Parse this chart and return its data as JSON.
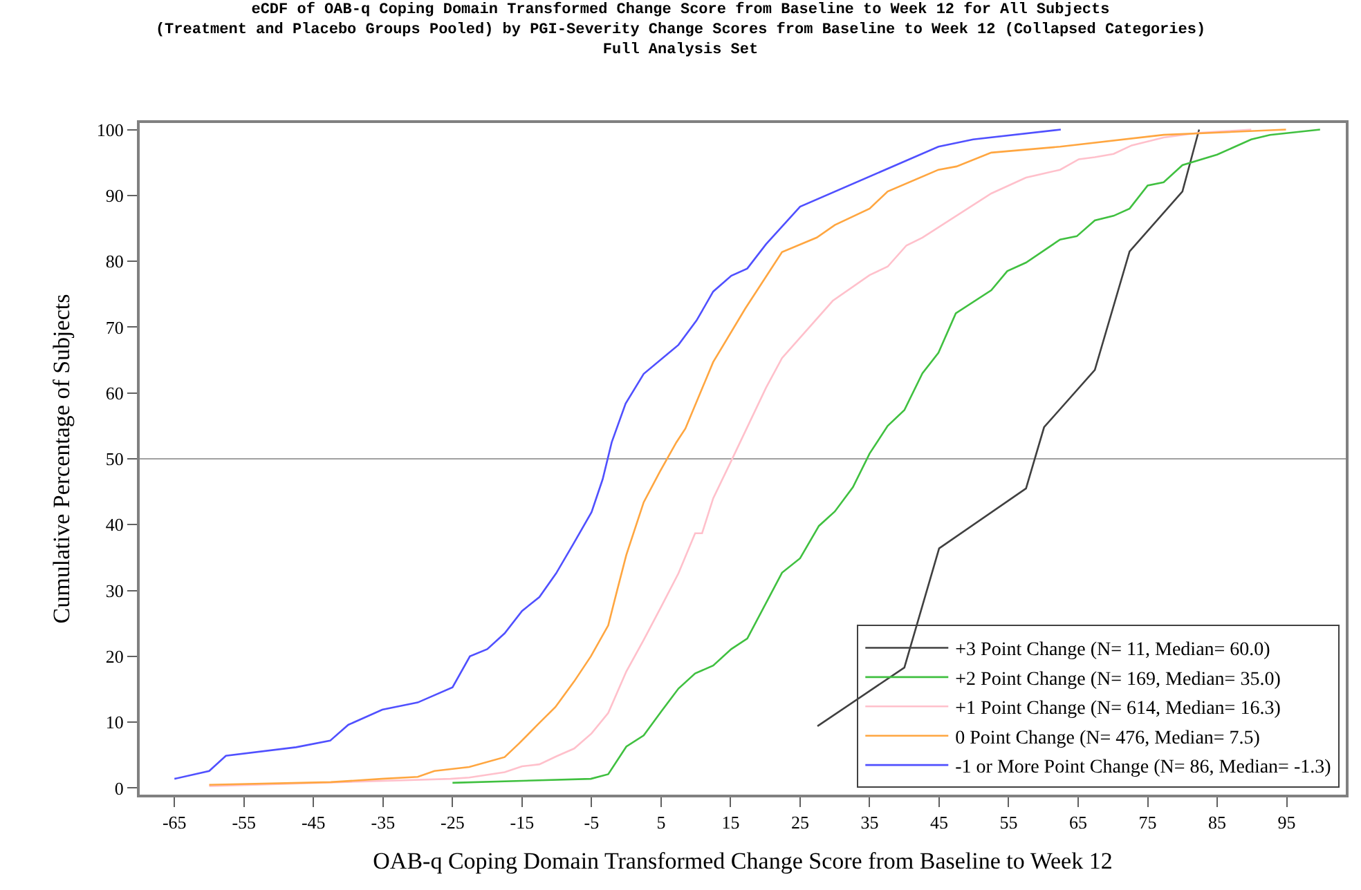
{
  "chart_data": {
    "type": "line",
    "title": "eCDF of OAB-q Coping Domain Transformed Change Score from Baseline to Week 12 for All Subjects\n(Treatment and Placebo Groups Pooled) by PGI-Severity Change Scores from Baseline to Week 12 (Collapsed Categories)\nFull Analysis Set",
    "xlabel": "OAB-q Coping Domain Transformed Change Score from Baseline to Week 12",
    "ylabel": "Cumulative Percentage of Subjects",
    "xlim": [
      -70,
      103.5
    ],
    "ylim": [
      -1,
      101
    ],
    "xticks": [
      -65,
      -55,
      -45,
      -35,
      -25,
      -15,
      -5,
      5,
      15,
      25,
      35,
      45,
      55,
      65,
      75,
      85,
      95
    ],
    "yticks": [
      0,
      10,
      20,
      30,
      40,
      50,
      60,
      70,
      80,
      90,
      100
    ],
    "grid": false,
    "legend": "bottom right",
    "marker": "none",
    "line_style": "solid",
    "ref_lines": [
      {
        "axis": "y",
        "value": 50,
        "label": null,
        "color": "#a0a0a0"
      }
    ],
    "series": [
      {
        "name": "+3 Point Change (N= 11, Median= 60.0)",
        "color": "#404040",
        "x": [
          27.5,
          40.0,
          45.0,
          57.5,
          60.1,
          67.4,
          72.4,
          80.0,
          82.4
        ],
        "values": [
          9.4,
          18.3,
          36.4,
          45.5,
          54.8,
          63.5,
          81.5,
          90.6,
          100
        ]
      },
      {
        "name": "+2 Point Change (N= 169, Median= 35.0)",
        "color": "#40c040",
        "x": [
          -25,
          -5.1,
          -2.6,
          0,
          2.5,
          5.0,
          7.5,
          9.9,
          12.5,
          15.1,
          17.4,
          22.4,
          25.0,
          27.7,
          30.0,
          32.6,
          35.0,
          37.6,
          40.0,
          42.6,
          44.9,
          47.4,
          52.5,
          54.8,
          57.5,
          62.4,
          64.8,
          67.4,
          70.1,
          72.4,
          75.0,
          77.3,
          80.0,
          85.0,
          89.9,
          92.6,
          99.8
        ],
        "values": [
          0.8,
          1.4,
          2.1,
          6.3,
          8.0,
          11.6,
          15.1,
          17.4,
          18.6,
          21.1,
          22.7,
          32.7,
          34.9,
          39.8,
          42.0,
          45.7,
          50.8,
          55.0,
          57.4,
          63.0,
          66.1,
          72.1,
          75.6,
          78.5,
          79.8,
          83.3,
          83.8,
          86.2,
          86.9,
          88.0,
          91.5,
          92.0,
          94.6,
          96.2,
          98.5,
          99.2,
          100
        ]
      },
      {
        "name": "+1 Point Change (N= 614, Median= 16.3)",
        "color": "#ffc0cb",
        "x": [
          -60,
          -25.3,
          -22.6,
          -17.5,
          -15,
          -12.5,
          -10.1,
          -7.5,
          -5.0,
          -2.6,
          0,
          2.5,
          5.0,
          7.5,
          9.9,
          10.9,
          12.5,
          15.1,
          20.1,
          22.4,
          29.7,
          35.0,
          37.6,
          40.3,
          42.6,
          52.5,
          57.5,
          62.4,
          65.1,
          67.4,
          70.1,
          72.7,
          77.3,
          82.3,
          89.9
        ],
        "values": [
          0.3,
          1.4,
          1.6,
          2.4,
          3.3,
          3.6,
          4.8,
          6.0,
          8.3,
          11.4,
          17.7,
          22.5,
          27.5,
          32.6,
          38.7,
          38.7,
          44.0,
          49.7,
          60.8,
          65.3,
          74.0,
          77.9,
          79.2,
          82.4,
          83.6,
          90.3,
          92.7,
          93.9,
          95.5,
          95.8,
          96.3,
          97.6,
          98.8,
          99.5,
          100
        ]
      },
      {
        "name": "0 Point Change (N= 476, Median= 7.5)",
        "color": "#ffa640",
        "x": [
          -60,
          -42.5,
          -35.2,
          -30,
          -27.6,
          -22.6,
          -17.5,
          -15.4,
          -12.7,
          -10.2,
          -7.5,
          -5.1,
          -2.6,
          -1.3,
          0,
          2.5,
          4.8,
          7.2,
          8.5,
          12.5,
          17.1,
          22.4,
          27.4,
          30.0,
          35.0,
          37.6,
          44.9,
          47.5,
          52.5,
          62.4,
          77.3,
          94.9
        ],
        "values": [
          0.5,
          0.9,
          1.4,
          1.7,
          2.6,
          3.2,
          4.7,
          6.8,
          9.7,
          12.3,
          16.2,
          20.0,
          24.7,
          30.1,
          35.4,
          43.4,
          48.0,
          52.5,
          54.6,
          64.7,
          72.8,
          81.4,
          83.6,
          85.5,
          88.0,
          90.6,
          93.9,
          94.4,
          96.5,
          97.4,
          99.2,
          100
        ]
      },
      {
        "name": "-1 or More Point Change (N= 86, Median= -1.3)",
        "color": "#5050ff",
        "x": [
          -65,
          -60,
          -57.6,
          -47.5,
          -42.6,
          -40.0,
          -35.1,
          -30.0,
          -25.0,
          -22.5,
          -20.0,
          -17.5,
          -15.0,
          -12.5,
          -10.1,
          -7.6,
          -5.0,
          -3.4,
          -2.1,
          -0.1,
          2.5,
          7.5,
          10.1,
          12.5,
          15.1,
          17.4,
          20.1,
          25.0,
          44.9,
          49.9,
          62.5
        ],
        "values": [
          1.4,
          2.6,
          4.9,
          6.2,
          7.2,
          9.6,
          11.9,
          13.0,
          15.3,
          20.0,
          21.1,
          23.5,
          26.9,
          29.0,
          32.6,
          37.1,
          41.9,
          46.9,
          52.5,
          58.4,
          62.9,
          67.3,
          71.0,
          75.4,
          77.8,
          78.9,
          82.6,
          88.3,
          97.4,
          98.5,
          100
        ]
      }
    ]
  }
}
